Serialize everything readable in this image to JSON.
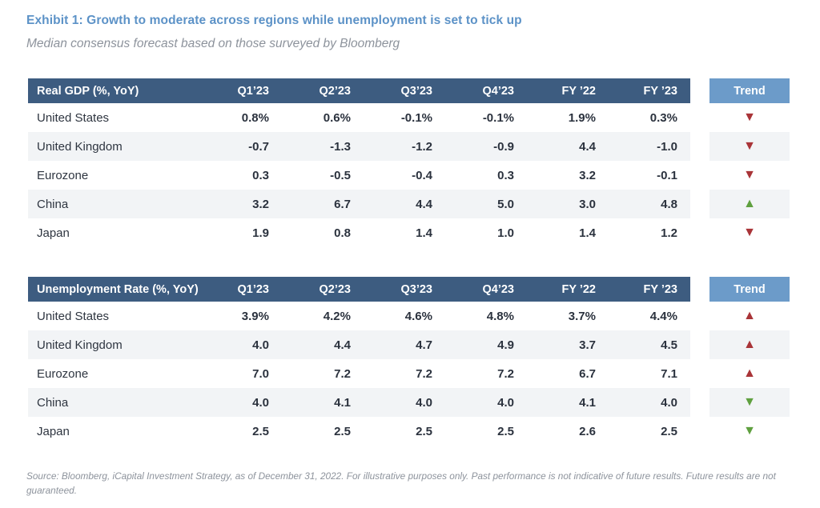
{
  "page": {
    "title": "Exhibit 1: Growth to moderate across regions while unemployment is set to tick up",
    "subtitle": "Median consensus forecast based on those surveyed by Bloomberg",
    "source_note": "Source: Bloomberg, iCapital Investment Strategy, as of December 31, 2022. For illustrative purposes only. Past performance is not indicative of future results. Future results are not guaranteed."
  },
  "colors": {
    "title_blue": "#5C92C7",
    "table_header_blue": "#3D5C80",
    "trend_header_blue": "#6C9BC9",
    "row_stripe": "#F2F4F6",
    "trend_red": "#A93438",
    "trend_green": "#5FA03F"
  },
  "chart_data": [
    {
      "type": "table",
      "title": "Real GDP (%, YoY)",
      "columns": [
        "Q1’23",
        "Q2’23",
        "Q3’23",
        "Q4’23",
        "FY ’22",
        "FY ’23"
      ],
      "trend_column": "Trend",
      "rows": [
        {
          "region": "United States",
          "values": [
            "0.8%",
            "0.6%",
            "-0.1%",
            "-0.1%",
            "1.9%",
            "0.3%"
          ],
          "trend": {
            "glyph": "▼",
            "direction": "down",
            "color": "red"
          }
        },
        {
          "region": "United Kingdom",
          "values": [
            "-0.7",
            "-1.3",
            "-1.2",
            "-0.9",
            "4.4",
            "-1.0"
          ],
          "trend": {
            "glyph": "▼",
            "direction": "down",
            "color": "red"
          }
        },
        {
          "region": "Eurozone",
          "values": [
            "0.3",
            "-0.5",
            "-0.4",
            "0.3",
            "3.2",
            "-0.1"
          ],
          "trend": {
            "glyph": "▼",
            "direction": "down",
            "color": "red"
          }
        },
        {
          "region": "China",
          "values": [
            "3.2",
            "6.7",
            "4.4",
            "5.0",
            "3.0",
            "4.8"
          ],
          "trend": {
            "glyph": "▲",
            "direction": "up",
            "color": "green"
          }
        },
        {
          "region": "Japan",
          "values": [
            "1.9",
            "0.8",
            "1.4",
            "1.0",
            "1.4",
            "1.2"
          ],
          "trend": {
            "glyph": "▼",
            "direction": "down",
            "color": "red"
          }
        }
      ]
    },
    {
      "type": "table",
      "title": "Unemployment Rate (%, YoY)",
      "columns": [
        "Q1’23",
        "Q2’23",
        "Q3’23",
        "Q4’23",
        "FY ’22",
        "FY ’23"
      ],
      "trend_column": "Trend",
      "rows": [
        {
          "region": "United States",
          "values": [
            "3.9%",
            "4.2%",
            "4.6%",
            "4.8%",
            "3.7%",
            "4.4%"
          ],
          "trend": {
            "glyph": "▲",
            "direction": "up",
            "color": "red"
          }
        },
        {
          "region": "United Kingdom",
          "values": [
            "4.0",
            "4.4",
            "4.7",
            "4.9",
            "3.7",
            "4.5"
          ],
          "trend": {
            "glyph": "▲",
            "direction": "up",
            "color": "red"
          }
        },
        {
          "region": "Eurozone",
          "values": [
            "7.0",
            "7.2",
            "7.2",
            "7.2",
            "6.7",
            "7.1"
          ],
          "trend": {
            "glyph": "▲",
            "direction": "up",
            "color": "red"
          }
        },
        {
          "region": "China",
          "values": [
            "4.0",
            "4.1",
            "4.0",
            "4.0",
            "4.1",
            "4.0"
          ],
          "trend": {
            "glyph": "▼",
            "direction": "down",
            "color": "green"
          }
        },
        {
          "region": "Japan",
          "values": [
            "2.5",
            "2.5",
            "2.5",
            "2.5",
            "2.6",
            "2.5"
          ],
          "trend": {
            "glyph": "▼",
            "direction": "down",
            "color": "green"
          }
        }
      ]
    }
  ]
}
